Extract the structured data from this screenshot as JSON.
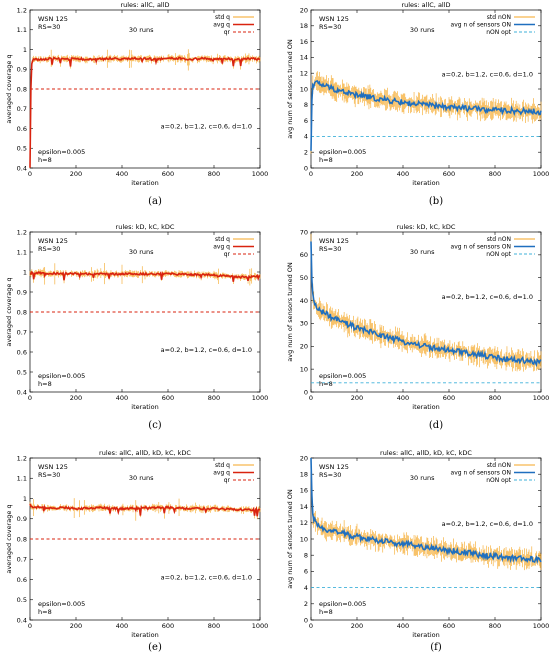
{
  "chart_data": [
    {
      "type": "line",
      "panel": "(a)",
      "title": "rules: allC, allD",
      "xlabel": "iteration",
      "ylabel": "averaged coverage q",
      "xlim": [
        0,
        1000
      ],
      "ylim": [
        0.4,
        1.2
      ],
      "xticks": [
        "0",
        "200",
        "400",
        "600",
        "800",
        "1000"
      ],
      "yticks": [
        "0.4",
        "0.5",
        "0.6",
        "0.7",
        "0.8",
        "0.9",
        "1",
        "1.1",
        "1.2"
      ],
      "legend": [
        "std q",
        "avg q",
        "qr"
      ],
      "legend_placement": "top-right",
      "annotations": [
        "WSN 125",
        "RS=30",
        "30 runs",
        "a=0.2, b=1.2, c=0.6, d=1.0",
        "epsilon=0.005",
        "h=8"
      ],
      "series": [
        {
          "name": "avg q",
          "x": [
            0,
            5,
            10,
            50,
            100,
            150,
            200,
            250,
            300,
            350,
            400,
            450,
            500,
            550,
            600,
            650,
            700,
            750,
            800,
            850,
            900,
            950,
            1000
          ],
          "values": [
            0.4,
            0.9,
            0.95,
            0.95,
            0.955,
            0.95,
            0.955,
            0.95,
            0.955,
            0.955,
            0.95,
            0.955,
            0.955,
            0.95,
            0.955,
            0.955,
            0.95,
            0.955,
            0.95,
            0.955,
            0.95,
            0.955,
            0.95
          ]
        },
        {
          "name": "qr",
          "x": [
            0,
            1000
          ],
          "values": [
            0.8,
            0.8
          ]
        }
      ]
    },
    {
      "type": "line",
      "panel": "(b)",
      "title": "rules: allC, allD",
      "xlabel": "iteration",
      "ylabel": "avg num of sensors turned ON",
      "xlim": [
        0,
        1000
      ],
      "ylim": [
        0,
        20
      ],
      "xticks": [
        "0",
        "200",
        "400",
        "600",
        "800",
        "1000"
      ],
      "yticks": [
        "0",
        "2",
        "4",
        "6",
        "8",
        "10",
        "12",
        "14",
        "16",
        "18",
        "20"
      ],
      "legend": [
        "std nON",
        "avg n of sensors ON",
        "nON opt"
      ],
      "legend_placement": "top-right",
      "annotations": [
        "WSN 125",
        "RS=30",
        "30 runs",
        "a=0.2, b=1.2, c=0.6, d=1.0",
        "epsilon=0.005",
        "h=8"
      ],
      "series": [
        {
          "name": "avg n of sensors ON",
          "x": [
            0,
            5,
            20,
            50,
            100,
            150,
            200,
            250,
            300,
            350,
            400,
            450,
            500,
            550,
            600,
            650,
            700,
            750,
            800,
            850,
            900,
            950,
            1000
          ],
          "values": [
            2,
            10.5,
            10.8,
            10.5,
            10.0,
            9.6,
            9.2,
            9.0,
            8.7,
            8.5,
            8.3,
            8.1,
            8.0,
            7.8,
            7.7,
            7.6,
            7.5,
            7.4,
            7.3,
            7.3,
            7.2,
            7.2,
            7.1
          ]
        },
        {
          "name": "nON opt",
          "x": [
            0,
            1000
          ],
          "values": [
            4,
            4
          ]
        }
      ]
    },
    {
      "type": "line",
      "panel": "(c)",
      "title": "rules: kD, kC, kDC",
      "xlabel": "iteration",
      "ylabel": "averaged coverage q",
      "xlim": [
        0,
        1000
      ],
      "ylim": [
        0.4,
        1.2
      ],
      "xticks": [
        "0",
        "200",
        "400",
        "600",
        "800",
        "1000"
      ],
      "yticks": [
        "0.4",
        "0.5",
        "0.6",
        "0.7",
        "0.8",
        "0.9",
        "1",
        "1.1",
        "1.2"
      ],
      "legend": [
        "std q",
        "avg q",
        "qr"
      ],
      "legend_placement": "top-right",
      "annotations": [
        "WSN 125",
        "RS=30",
        "30 runs",
        "a=0.2, b=1.2, c=0.6, d=1.0",
        "epsilon=0.005",
        "h=8"
      ],
      "series": [
        {
          "name": "avg q",
          "x": [
            0,
            5,
            50,
            100,
            200,
            300,
            400,
            500,
            600,
            700,
            800,
            850,
            900,
            950,
            1000
          ],
          "values": [
            0.99,
            0.995,
            0.995,
            0.993,
            0.992,
            0.99,
            0.99,
            0.99,
            0.99,
            0.988,
            0.985,
            0.98,
            0.975,
            0.975,
            0.98
          ]
        },
        {
          "name": "qr",
          "x": [
            0,
            1000
          ],
          "values": [
            0.8,
            0.8
          ]
        }
      ]
    },
    {
      "type": "line",
      "panel": "(d)",
      "title": "rules: kD, kC, kDC",
      "xlabel": "iteration",
      "ylabel": "avg num of sensors turned ON",
      "xlim": [
        0,
        1000
      ],
      "ylim": [
        0,
        70
      ],
      "xticks": [
        "0",
        "200",
        "400",
        "600",
        "800",
        "1000"
      ],
      "yticks": [
        "0",
        "10",
        "20",
        "30",
        "40",
        "50",
        "60",
        "70"
      ],
      "legend": [
        "std nON",
        "avg n of sensors ON",
        "nON opt"
      ],
      "legend_placement": "top-right",
      "annotations": [
        "WSN 125",
        "RS=30",
        "30 runs",
        "a=0.2, b=1.2, c=0.6, d=1.0",
        "epsilon=0.005",
        "h=8"
      ],
      "series": [
        {
          "name": "avg n of sensors ON",
          "x": [
            0,
            2,
            10,
            25,
            50,
            100,
            150,
            200,
            250,
            300,
            350,
            400,
            450,
            500,
            550,
            600,
            650,
            700,
            750,
            800,
            850,
            900,
            950,
            1000
          ],
          "values": [
            65,
            50,
            40,
            37,
            35,
            32,
            30,
            28,
            26.5,
            25,
            23.5,
            22,
            21,
            20,
            19,
            18,
            17.5,
            16.5,
            16,
            15,
            14.5,
            14,
            13.5,
            13
          ]
        },
        {
          "name": "nON opt",
          "x": [
            0,
            1000
          ],
          "values": [
            4,
            4
          ]
        }
      ]
    },
    {
      "type": "line",
      "panel": "(e)",
      "title": "rules: allC, allD, kD, kC, kDC",
      "xlabel": "iteration",
      "ylabel": "averaged coverage q",
      "xlim": [
        0,
        1000
      ],
      "ylim": [
        0.4,
        1.2
      ],
      "xticks": [
        "0",
        "200",
        "400",
        "600",
        "800",
        "1000"
      ],
      "yticks": [
        "0.4",
        "0.5",
        "0.6",
        "0.7",
        "0.8",
        "0.9",
        "1",
        "1.1",
        "1.2"
      ],
      "legend": [
        "std q",
        "avg q",
        "qr"
      ],
      "legend_placement": "top-right",
      "annotations": [
        "WSN 125",
        "RS=30",
        "30 runs",
        "a=0.2, b=1.2, c=0.6, d=1.0",
        "epsilon=0.005",
        "h=8"
      ],
      "series": [
        {
          "name": "avg q",
          "x": [
            0,
            5,
            50,
            100,
            150,
            200,
            300,
            400,
            500,
            600,
            700,
            800,
            900,
            1000
          ],
          "values": [
            0.97,
            0.96,
            0.955,
            0.95,
            0.955,
            0.95,
            0.955,
            0.95,
            0.955,
            0.955,
            0.95,
            0.95,
            0.945,
            0.945
          ]
        },
        {
          "name": "qr",
          "x": [
            0,
            1000
          ],
          "values": [
            0.8,
            0.8
          ]
        }
      ]
    },
    {
      "type": "line",
      "panel": "(f)",
      "title": "rules: allC, allD, kD, kC, kDC",
      "xlabel": "iteration",
      "ylabel": "avg num of sensors turned ON",
      "xlim": [
        0,
        1000
      ],
      "ylim": [
        0,
        20
      ],
      "xticks": [
        "0",
        "200",
        "400",
        "600",
        "800",
        "1000"
      ],
      "yticks": [
        "0",
        "2",
        "4",
        "6",
        "8",
        "10",
        "12",
        "14",
        "16",
        "18",
        "20"
      ],
      "legend": [
        "std nON",
        "avg n of sensors ON",
        "nON opt"
      ],
      "legend_placement": "top-right",
      "annotations": [
        "WSN 125",
        "RS=30",
        "30 runs",
        "a=0.2, b=1.2, c=0.6, d=1.0",
        "epsilon=0.005",
        "h=8"
      ],
      "series": [
        {
          "name": "avg n of sensors ON",
          "x": [
            0,
            2,
            10,
            30,
            50,
            100,
            150,
            200,
            250,
            300,
            350,
            400,
            450,
            500,
            550,
            600,
            650,
            700,
            750,
            800,
            850,
            900,
            950,
            1000
          ],
          "values": [
            20,
            16,
            12.5,
            11.5,
            11.3,
            11.0,
            10.6,
            10.3,
            10.0,
            9.8,
            9.6,
            9.4,
            9.2,
            9.0,
            8.8,
            8.6,
            8.4,
            8.2,
            8.0,
            7.9,
            7.7,
            7.6,
            7.5,
            7.4
          ]
        },
        {
          "name": "nON opt",
          "x": [
            0,
            1000
          ],
          "values": [
            4,
            4
          ]
        }
      ]
    }
  ],
  "colors": {
    "std": "#f5a623",
    "avg_q": "#d9230f",
    "avg_n": "#1f6fbf",
    "qr": "#d9230f",
    "opt": "#3fb1d9"
  }
}
